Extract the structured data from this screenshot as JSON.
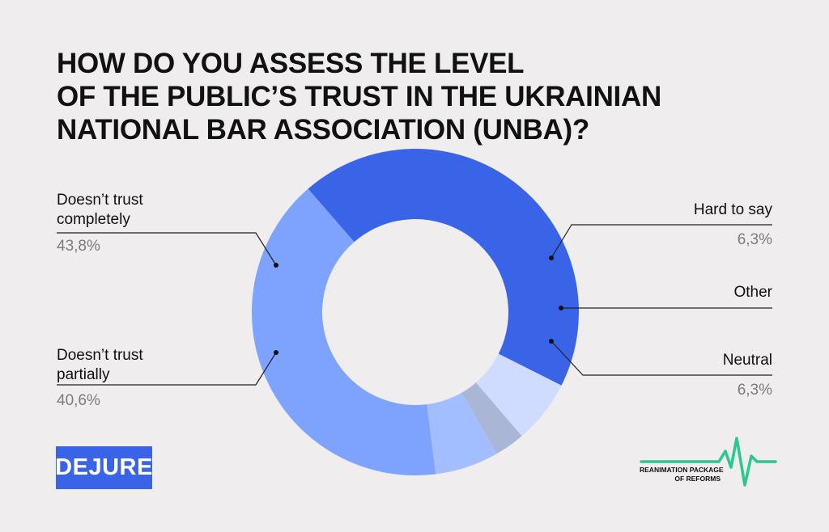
{
  "title_lines": [
    "HOW DO YOU ASSESS THE LEVEL",
    "OF THE PUBLIC’S TRUST IN THE UKRAINIAN",
    "NATIONAL BAR ASSOCIATION (UNBA)?"
  ],
  "chart_data": {
    "type": "pie",
    "variant": "donut",
    "slices": [
      {
        "name_lines": [
          "Doesn’t trust",
          "completely"
        ],
        "value": 43.8,
        "value_label": "43,8%",
        "color": "#3a64e8"
      },
      {
        "name_lines": [
          "Hard to say"
        ],
        "value": 6.3,
        "value_label": "6,3%",
        "color": "#cfdcff"
      },
      {
        "name_lines": [
          "Other"
        ],
        "value": 3.0,
        "value_label": "",
        "color": "#a9b6d6"
      },
      {
        "name_lines": [
          "Neutral"
        ],
        "value": 6.3,
        "value_label": "6,3%",
        "color": "#a3beff"
      },
      {
        "name_lines": [
          "Doesn’t trust",
          "partially"
        ],
        "value": 40.6,
        "value_label": "40,6%",
        "color": "#7ea3ff"
      }
    ]
  },
  "logos": {
    "dejure": "DEJURE",
    "reanimation_lines": [
      "REANIMATION PACKAGE",
      "OF REFORMS"
    ],
    "reanimation_color": "#2cc78c"
  }
}
